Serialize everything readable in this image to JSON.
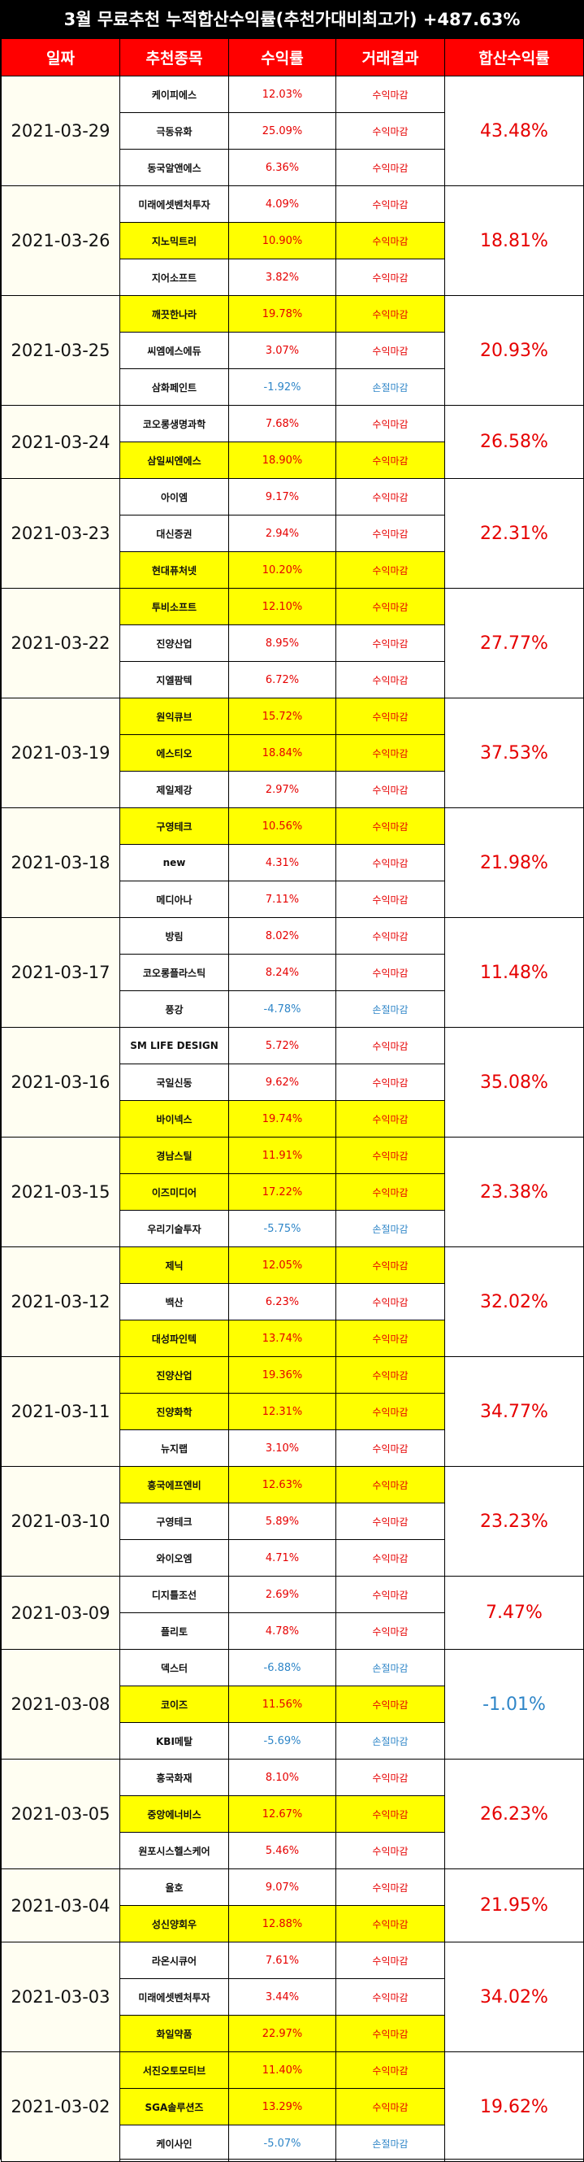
{
  "title": "3월 무료추천 누적합산수익률(추천가대비최고가) +487.63%",
  "headers": [
    "일짜",
    "추천종목",
    "수익률",
    "거래결과",
    "합산수익률"
  ],
  "colors": {
    "header_bg": "#ff0000",
    "highlight": "#ffff00",
    "positive": "#e60000",
    "negative": "#2f86c8"
  },
  "groups": [
    {
      "date": "2021-03-29",
      "total": "43.48%",
      "rows": [
        {
          "name": "케이피에스",
          "ret": "12.03%",
          "result": "수익마감",
          "hl": false
        },
        {
          "name": "극동유화",
          "ret": "25.09%",
          "result": "수익마감",
          "hl": false
        },
        {
          "name": "동국알앤에스",
          "ret": "6.36%",
          "result": "수익마감",
          "hl": false
        }
      ]
    },
    {
      "date": "2021-03-26",
      "total": "18.81%",
      "rows": [
        {
          "name": "미래에셋벤처투자",
          "ret": "4.09%",
          "result": "수익마감",
          "hl": false
        },
        {
          "name": "지노믹트리",
          "ret": "10.90%",
          "result": "수익마감",
          "hl": true
        },
        {
          "name": "지어소프트",
          "ret": "3.82%",
          "result": "수익마감",
          "hl": false
        }
      ]
    },
    {
      "date": "2021-03-25",
      "total": "20.93%",
      "rows": [
        {
          "name": "깨끗한나라",
          "ret": "19.78%",
          "result": "수익마감",
          "hl": true
        },
        {
          "name": "씨엠에스에듀",
          "ret": "3.07%",
          "result": "수익마감",
          "hl": false
        },
        {
          "name": "삼화페인트",
          "ret": "-1.92%",
          "result": "손절마감",
          "hl": false
        }
      ]
    },
    {
      "date": "2021-03-24",
      "total": "26.58%",
      "rows": [
        {
          "name": "코오롱생명과학",
          "ret": "7.68%",
          "result": "수익마감",
          "hl": false
        },
        {
          "name": "삼일씨엔에스",
          "ret": "18.90%",
          "result": "수익마감",
          "hl": true
        }
      ]
    },
    {
      "date": "2021-03-23",
      "total": "22.31%",
      "rows": [
        {
          "name": "아이엠",
          "ret": "9.17%",
          "result": "수익마감",
          "hl": false
        },
        {
          "name": "대신증권",
          "ret": "2.94%",
          "result": "수익마감",
          "hl": false
        },
        {
          "name": "현대퓨처넷",
          "ret": "10.20%",
          "result": "수익마감",
          "hl": true
        }
      ]
    },
    {
      "date": "2021-03-22",
      "total": "27.77%",
      "rows": [
        {
          "name": "투비소프트",
          "ret": "12.10%",
          "result": "수익마감",
          "hl": true
        },
        {
          "name": "진양산업",
          "ret": "8.95%",
          "result": "수익마감",
          "hl": false
        },
        {
          "name": "지엘팜텍",
          "ret": "6.72%",
          "result": "수익마감",
          "hl": false
        }
      ]
    },
    {
      "date": "2021-03-19",
      "total": "37.53%",
      "rows": [
        {
          "name": "원익큐브",
          "ret": "15.72%",
          "result": "수익마감",
          "hl": true
        },
        {
          "name": "에스티오",
          "ret": "18.84%",
          "result": "수익마감",
          "hl": true
        },
        {
          "name": "제일제강",
          "ret": "2.97%",
          "result": "수익마감",
          "hl": false
        }
      ]
    },
    {
      "date": "2021-03-18",
      "total": "21.98%",
      "rows": [
        {
          "name": "구영테크",
          "ret": "10.56%",
          "result": "수익마감",
          "hl": true
        },
        {
          "name": "new",
          "ret": "4.31%",
          "result": "수익마감",
          "hl": false
        },
        {
          "name": "메디아나",
          "ret": "7.11%",
          "result": "수익마감",
          "hl": false
        }
      ]
    },
    {
      "date": "2021-03-17",
      "total": "11.48%",
      "rows": [
        {
          "name": "방림",
          "ret": "8.02%",
          "result": "수익마감",
          "hl": false
        },
        {
          "name": "코오롱플라스틱",
          "ret": "8.24%",
          "result": "수익마감",
          "hl": false
        },
        {
          "name": "풍강",
          "ret": "-4.78%",
          "result": "손절마감",
          "hl": false
        }
      ]
    },
    {
      "date": "2021-03-16",
      "total": "35.08%",
      "rows": [
        {
          "name": "SM LIFE DESIGN",
          "ret": "5.72%",
          "result": "수익마감",
          "hl": false
        },
        {
          "name": "국일신동",
          "ret": "9.62%",
          "result": "수익마감",
          "hl": false
        },
        {
          "name": "바이넥스",
          "ret": "19.74%",
          "result": "수익마감",
          "hl": true
        }
      ]
    },
    {
      "date": "2021-03-15",
      "total": "23.38%",
      "rows": [
        {
          "name": "경남스틸",
          "ret": "11.91%",
          "result": "수익마감",
          "hl": true
        },
        {
          "name": "이즈미디어",
          "ret": "17.22%",
          "result": "수익마감",
          "hl": true
        },
        {
          "name": "우리기술투자",
          "ret": "-5.75%",
          "result": "손절마감",
          "hl": false
        }
      ]
    },
    {
      "date": "2021-03-12",
      "total": "32.02%",
      "rows": [
        {
          "name": "제닉",
          "ret": "12.05%",
          "result": "수익마감",
          "hl": true
        },
        {
          "name": "백산",
          "ret": "6.23%",
          "result": "수익마감",
          "hl": false
        },
        {
          "name": "대성파인텍",
          "ret": "13.74%",
          "result": "수익마감",
          "hl": true
        }
      ]
    },
    {
      "date": "2021-03-11",
      "total": "34.77%",
      "rows": [
        {
          "name": "진양산업",
          "ret": "19.36%",
          "result": "수익마감",
          "hl": true
        },
        {
          "name": "진양화학",
          "ret": "12.31%",
          "result": "수익마감",
          "hl": true
        },
        {
          "name": "뉴지랩",
          "ret": "3.10%",
          "result": "수익마감",
          "hl": false
        }
      ]
    },
    {
      "date": "2021-03-10",
      "total": "23.23%",
      "rows": [
        {
          "name": "흥국에프엔비",
          "ret": "12.63%",
          "result": "수익마감",
          "hl": true
        },
        {
          "name": "구영테크",
          "ret": "5.89%",
          "result": "수익마감",
          "hl": false
        },
        {
          "name": "와이오엠",
          "ret": "4.71%",
          "result": "수익마감",
          "hl": false
        }
      ]
    },
    {
      "date": "2021-03-09",
      "total": "7.47%",
      "rows": [
        {
          "name": "디지틀조선",
          "ret": "2.69%",
          "result": "수익마감",
          "hl": false
        },
        {
          "name": "플리토",
          "ret": "4.78%",
          "result": "수익마감",
          "hl": false
        }
      ]
    },
    {
      "date": "2021-03-08",
      "total": "-1.01%",
      "rows": [
        {
          "name": "덱스터",
          "ret": "-6.88%",
          "result": "손절마감",
          "hl": false
        },
        {
          "name": "코이즈",
          "ret": "11.56%",
          "result": "수익마감",
          "hl": true
        },
        {
          "name": "KBI메탈",
          "ret": "-5.69%",
          "result": "손절마감",
          "hl": false
        }
      ]
    },
    {
      "date": "2021-03-05",
      "total": "26.23%",
      "rows": [
        {
          "name": "흥국화재",
          "ret": "8.10%",
          "result": "수익마감",
          "hl": false
        },
        {
          "name": "중앙에너비스",
          "ret": "12.67%",
          "result": "수익마감",
          "hl": true
        },
        {
          "name": "원포시스헬스케어",
          "ret": "5.46%",
          "result": "수익마감",
          "hl": false
        }
      ]
    },
    {
      "date": "2021-03-04",
      "total": "21.95%",
      "rows": [
        {
          "name": "율호",
          "ret": "9.07%",
          "result": "수익마감",
          "hl": false
        },
        {
          "name": "성신양회우",
          "ret": "12.88%",
          "result": "수익마감",
          "hl": true
        }
      ]
    },
    {
      "date": "2021-03-03",
      "total": "34.02%",
      "rows": [
        {
          "name": "라온시큐어",
          "ret": "7.61%",
          "result": "수익마감",
          "hl": false
        },
        {
          "name": "미래에셋벤처투자",
          "ret": "3.44%",
          "result": "수익마감",
          "hl": false
        },
        {
          "name": "화일약품",
          "ret": "22.97%",
          "result": "수익마감",
          "hl": true
        }
      ]
    },
    {
      "date": "2021-03-02",
      "total": "19.62%",
      "rows": [
        {
          "name": "서진오토모티브",
          "ret": "11.40%",
          "result": "수익마감",
          "hl": true
        },
        {
          "name": "SGA솔루션즈",
          "ret": "13.29%",
          "result": "수익마감",
          "hl": true
        },
        {
          "name": "케이사인",
          "ret": "-5.07%",
          "result": "손절마감",
          "hl": false
        }
      ]
    }
  ]
}
